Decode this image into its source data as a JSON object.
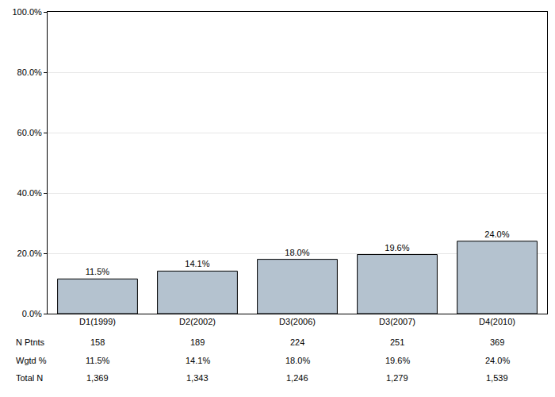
{
  "chart_data": {
    "type": "bar",
    "categories": [
      "D1(1999)",
      "D2(2002)",
      "D3(2006)",
      "D3(2007)",
      "D4(2010)"
    ],
    "values": [
      11.5,
      14.1,
      18.0,
      19.6,
      24.0
    ],
    "value_labels": [
      "11.5%",
      "14.1%",
      "18.0%",
      "19.6%",
      "24.0%"
    ],
    "data_labels": true,
    "color": "#b4c2cf",
    "ylim": [
      0,
      100
    ],
    "yticks": [
      {
        "value": 0,
        "label": "0.0%"
      },
      {
        "value": 20,
        "label": "20.0%"
      },
      {
        "value": 40,
        "label": "40.0%"
      },
      {
        "value": 60,
        "label": "60.0%"
      },
      {
        "value": 80,
        "label": "80.0%"
      },
      {
        "value": 100,
        "label": "100.0%"
      }
    ],
    "grid": true,
    "table": {
      "rows": [
        {
          "label": "N Ptnts",
          "cells": [
            "158",
            "189",
            "224",
            "251",
            "369"
          ]
        },
        {
          "label": "Wgtd %",
          "cells": [
            "11.5%",
            "14.1%",
            "18.0%",
            "19.6%",
            "24.0%"
          ]
        },
        {
          "label": "Total N",
          "cells": [
            "1,369",
            "1,343",
            "1,246",
            "1,279",
            "1,539"
          ]
        }
      ]
    }
  }
}
